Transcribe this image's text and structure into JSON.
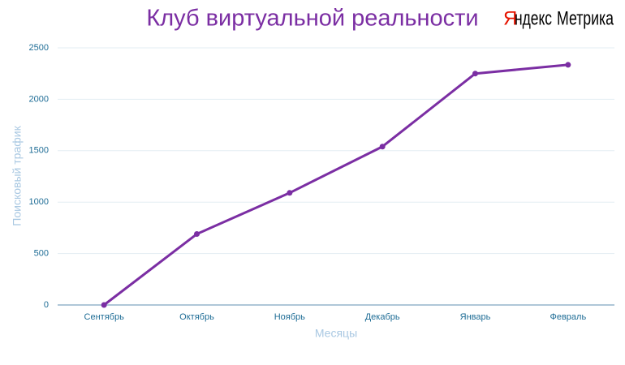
{
  "chart_data": {
    "type": "line",
    "title": "Клуб виртуальной реальности",
    "logo": {
      "brand_first": "Я",
      "brand_rest": "ндекс",
      "product": "Метрика"
    },
    "x_label": "Месяцы",
    "y_label": "Поисковый трафик",
    "categories": [
      "Сентябрь",
      "Октябрь",
      "Ноябрь",
      "Декабрь",
      "Январь",
      "Февраль"
    ],
    "series": [
      {
        "name": "Поисковый трафик",
        "color": "#7b2ea3",
        "values": [
          0,
          690,
          1090,
          1540,
          2250,
          2335
        ]
      }
    ],
    "ylim": [
      0,
      2500
    ],
    "yticks": [
      0,
      500,
      1000,
      1500,
      2000,
      2500
    ],
    "grid": true
  }
}
